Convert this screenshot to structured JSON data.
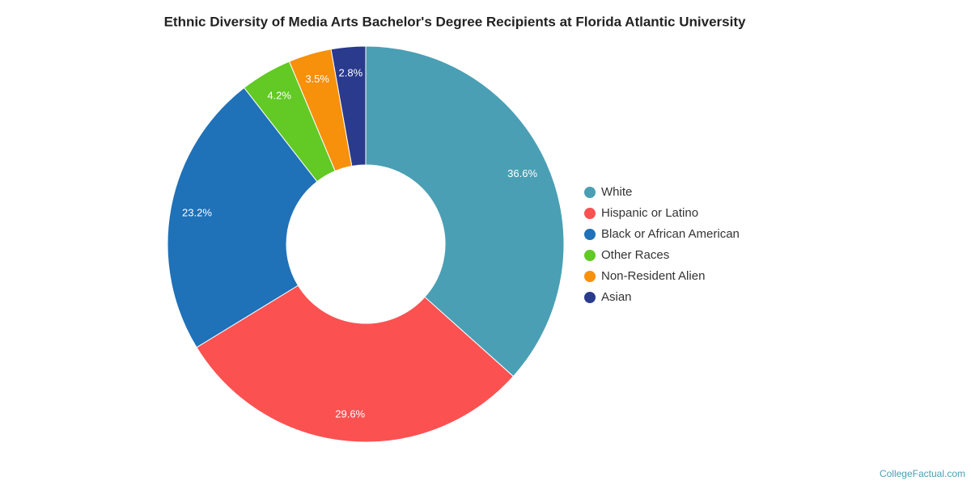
{
  "chart_data": {
    "type": "donut",
    "title": "Ethnic Diversity of Media Arts Bachelor's Degree Recipients at Florida Atlantic University",
    "categories": [
      "White",
      "Hispanic or Latino",
      "Black or African American",
      "Other Races",
      "Non-Resident Alien",
      "Asian"
    ],
    "values": [
      36.6,
      29.6,
      23.2,
      4.2,
      3.5,
      2.8
    ],
    "value_labels": [
      "36.6%",
      "29.6%",
      "23.2%",
      "4.2%",
      "3.5%",
      "2.8%"
    ],
    "colors": [
      "#4a9fb4",
      "#fc5151",
      "#1f71b8",
      "#62c925",
      "#f7900b",
      "#2a3a8d"
    ],
    "legend": "right"
  },
  "credit": "CollegeFactual.com"
}
